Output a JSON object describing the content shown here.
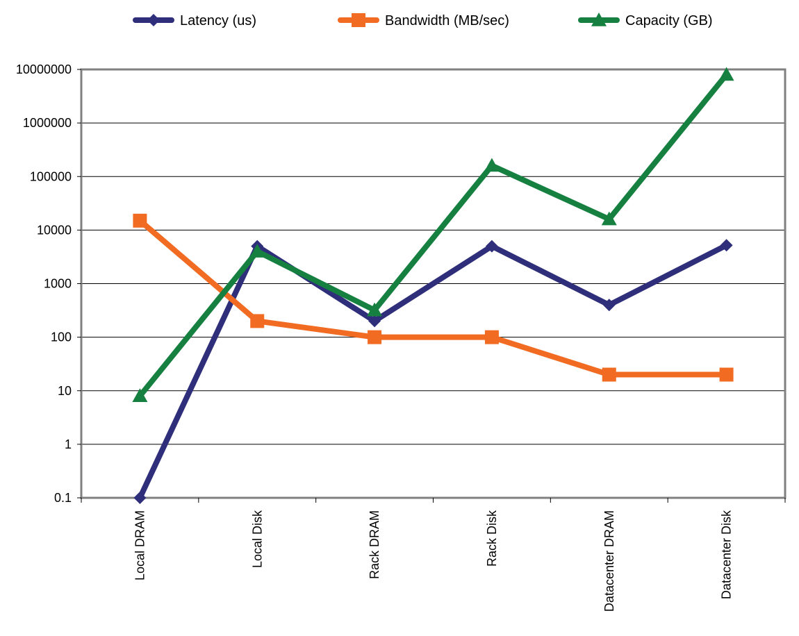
{
  "chart_data": {
    "type": "line",
    "title": "",
    "xlabel": "",
    "ylabel": "",
    "y_scale": "log",
    "ylim": [
      0.1,
      10000000
    ],
    "yticks": [
      "0.1",
      "1",
      "10",
      "100",
      "1000",
      "10000",
      "100000",
      "1000000",
      "10000000"
    ],
    "grid": true,
    "legend_position": "top",
    "categories": [
      "Local DRAM",
      "Local Disk",
      "Rack DRAM",
      "Rack Disk",
      "Datacenter DRAM",
      "Datacenter Disk"
    ],
    "series": [
      {
        "name": "Latency (us)",
        "color": "#2e2e7a",
        "marker": "diamond",
        "values": [
          0.1,
          5000,
          200,
          5000,
          400,
          5200
        ]
      },
      {
        "name": "Bandwidth (MB/sec)",
        "color": "#f26b22",
        "marker": "square",
        "values": [
          15000,
          200,
          100,
          100,
          20,
          20
        ]
      },
      {
        "name": "Capacity (GB)",
        "color": "#168040",
        "marker": "triangle",
        "values": [
          8,
          4000,
          320,
          160000,
          16000,
          8000000
        ]
      }
    ]
  }
}
